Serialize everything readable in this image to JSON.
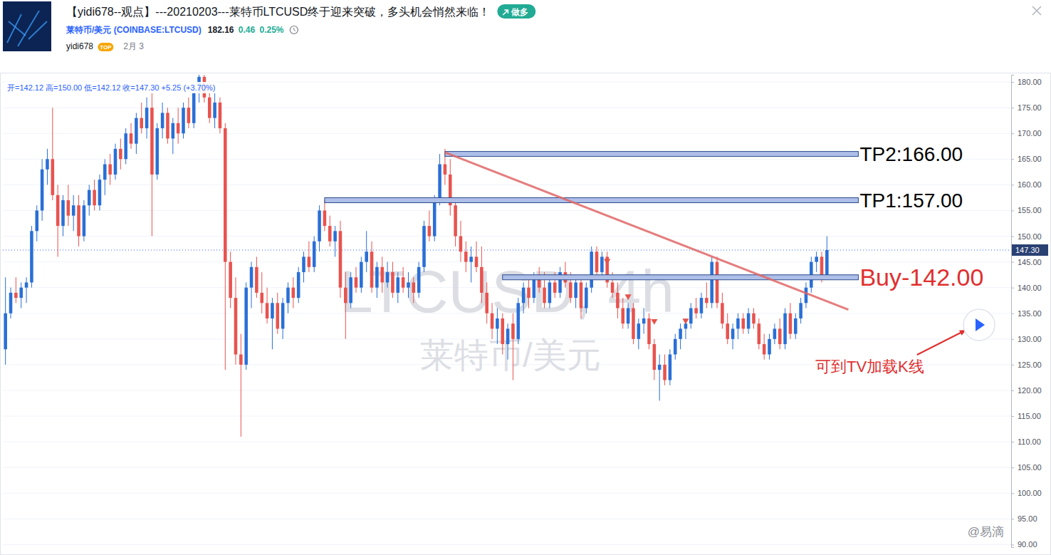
{
  "header": {
    "title": "【yidi678--观点】---20210203---莱特币LTCUSD终于迎来突破，多头机会悄然来临！",
    "badge": "做多",
    "symbol": "莱特币/美元 (COINBASE:LTCUSD)",
    "price": "182.16",
    "change": "0.46",
    "change_pct": "0.25%",
    "author": "yidi678",
    "author_badge": "TOP",
    "date": "2月 3"
  },
  "chart_data": {
    "type": "candlestick",
    "ohlc_legend": "开=142.12 高=150.00 低=142.12 收=147.30 +5.25 (+3.70%)",
    "watermark": "LTCUSD, 4h",
    "watermark_subtitle": "莱特币/美元",
    "categories": [
      null,
      null,
      null,
      null,
      null,
      null,
      null,
      null,
      null,
      null,
      null,
      null,
      null,
      null,
      null,
      null,
      null,
      null,
      null,
      null,
      null,
      null,
      null,
      null,
      null,
      null,
      null,
      null,
      null,
      null,
      null,
      null,
      null,
      null,
      null,
      null,
      null,
      null,
      null,
      null,
      null,
      null,
      null,
      null,
      null,
      null,
      null,
      null,
      null,
      null,
      null,
      null,
      null,
      null,
      null,
      null,
      null,
      null,
      null,
      null,
      null,
      null,
      null,
      null,
      null,
      null,
      null,
      null,
      null,
      null,
      null,
      null,
      null,
      null,
      null,
      null,
      null,
      null,
      null,
      null,
      null,
      null,
      null,
      null,
      null,
      null,
      null,
      null,
      null,
      null,
      null,
      null,
      null,
      null,
      null,
      null,
      null,
      null,
      null,
      null,
      null,
      null,
      null,
      null,
      null,
      null,
      null,
      null,
      null,
      null,
      null,
      null,
      null,
      null,
      null,
      null,
      null,
      null,
      null,
      null,
      null,
      null,
      null,
      null,
      null,
      null,
      null,
      null,
      null,
      null,
      null,
      null,
      null,
      null,
      null,
      null,
      null,
      null,
      null,
      null,
      null,
      null,
      null,
      null,
      null,
      null,
      null,
      null,
      null,
      null,
      null,
      null,
      null,
      null,
      null,
      null,
      null,
      null
    ],
    "series": [
      {
        "open": [
          128,
          135,
          139,
          138,
          140,
          141,
          151,
          155,
          163,
          165,
          158,
          152,
          157,
          154,
          156,
          150,
          156,
          159,
          156,
          161,
          164,
          162,
          167,
          165,
          170,
          168,
          173,
          171,
          175,
          162,
          171,
          174,
          169,
          172,
          170,
          175,
          172,
          178,
          181,
          177,
          173,
          176,
          171,
          145,
          138,
          127,
          125,
          140,
          144,
          139,
          137,
          134,
          137,
          132,
          137,
          140,
          138,
          143,
          146,
          144,
          149,
          155,
          152,
          149,
          151,
          140,
          137,
          142,
          140,
          145,
          147,
          140,
          144,
          141,
          143,
          139,
          142,
          140,
          141,
          139,
          144,
          152,
          150,
          157,
          164,
          162,
          156,
          150,
          147,
          145,
          146,
          144,
          139,
          135,
          132,
          134,
          129,
          133,
          130,
          137,
          140,
          138,
          142,
          140,
          137,
          141,
          139,
          143,
          141,
          138,
          141,
          136,
          140,
          147,
          143,
          146,
          141,
          139,
          136,
          133,
          136,
          130,
          133,
          134,
          129,
          124,
          125,
          122,
          127,
          130,
          132,
          133,
          136,
          135,
          138,
          137,
          145,
          137,
          133,
          130,
          132,
          134,
          132,
          135,
          133,
          129,
          127,
          130,
          132,
          129,
          135,
          131,
          134,
          137,
          140,
          145,
          146,
          142.12
        ],
        "high": [
          142,
          140,
          142,
          141,
          142,
          152,
          156,
          165,
          167,
          175,
          160,
          158,
          160,
          158,
          158,
          157,
          160,
          161,
          162,
          165,
          166,
          168,
          169,
          171,
          172,
          174,
          176,
          177,
          178,
          172,
          176,
          175,
          173,
          175,
          176,
          177,
          179,
          183,
          184,
          180,
          178,
          177,
          172,
          147,
          142,
          131,
          141,
          145,
          146,
          143,
          140,
          138,
          139,
          138,
          141,
          142,
          144,
          147,
          149,
          150,
          156,
          157,
          154,
          152,
          153,
          143,
          143,
          144,
          146,
          151,
          149,
          145,
          146,
          145,
          145,
          143,
          144,
          143,
          142,
          145,
          153,
          155,
          158,
          166,
          167,
          165,
          157,
          153,
          149,
          148,
          149,
          148,
          141,
          137,
          136,
          135,
          133,
          135,
          138,
          141,
          142,
          143,
          144,
          143,
          142,
          143,
          144,
          145,
          143,
          142,
          142,
          141,
          148,
          148,
          147,
          147,
          143,
          141,
          138,
          137,
          137,
          134,
          136,
          135,
          130,
          127,
          127,
          128,
          131,
          133,
          134,
          137,
          138,
          139,
          141,
          146,
          146,
          139,
          135,
          133,
          135,
          135,
          136,
          136,
          134,
          131,
          131,
          133,
          134,
          136,
          137,
          135,
          138,
          141,
          146,
          147,
          147,
          150
        ],
        "low": [
          125,
          134,
          137,
          136,
          137,
          140,
          149,
          153,
          160,
          157,
          146,
          150,
          152,
          151,
          148,
          149,
          154,
          155,
          155,
          158,
          160,
          161,
          163,
          164,
          167,
          166,
          170,
          169,
          150,
          161,
          169,
          168,
          166,
          168,
          169,
          171,
          171,
          176,
          176,
          172,
          171,
          170,
          124,
          136,
          125,
          111,
          124,
          136,
          138,
          135,
          133,
          128,
          131,
          130,
          135,
          136,
          137,
          141,
          143,
          143,
          147,
          151,
          148,
          146,
          138,
          130,
          136,
          139,
          139,
          143,
          139,
          138,
          139,
          140,
          138,
          137,
          139,
          138,
          137,
          138,
          143,
          149,
          149,
          156,
          160,
          154,
          148,
          145,
          143,
          141,
          143,
          137,
          133,
          130,
          129,
          127,
          126,
          122,
          129,
          135,
          136,
          137,
          139,
          136,
          136,
          138,
          138,
          140,
          137,
          136,
          134,
          135,
          139,
          142,
          142,
          140,
          138,
          134,
          132,
          132,
          129,
          128,
          131,
          128,
          122,
          118,
          121,
          121,
          126,
          128,
          130,
          132,
          134,
          134,
          136,
          136,
          136,
          132,
          129,
          128,
          130,
          131,
          131,
          132,
          128,
          126,
          126,
          129,
          128,
          128,
          130,
          130,
          133,
          136,
          139,
          143,
          141,
          142.12
        ],
        "close": [
          135,
          139,
          138,
          140,
          141,
          151,
          155,
          163,
          165,
          158,
          152,
          157,
          154,
          156,
          150,
          156,
          159,
          156,
          161,
          164,
          162,
          167,
          165,
          170,
          168,
          173,
          171,
          175,
          162,
          171,
          174,
          169,
          172,
          170,
          175,
          172,
          178,
          181,
          177,
          173,
          176,
          171,
          145,
          138,
          127,
          125,
          140,
          144,
          139,
          137,
          134,
          137,
          132,
          137,
          140,
          138,
          143,
          146,
          144,
          149,
          155,
          152,
          149,
          151,
          140,
          137,
          142,
          140,
          145,
          147,
          140,
          144,
          141,
          143,
          139,
          142,
          140,
          141,
          139,
          144,
          152,
          150,
          157,
          164,
          162,
          156,
          150,
          147,
          145,
          146,
          144,
          139,
          135,
          132,
          134,
          129,
          132,
          130,
          137,
          140,
          138,
          142,
          140,
          137,
          141,
          139,
          143,
          141,
          138,
          141,
          136,
          140,
          147,
          143,
          146,
          141,
          139,
          136,
          133,
          136,
          130,
          133,
          134,
          129,
          124,
          125,
          122,
          127,
          130,
          132,
          133,
          136,
          135,
          138,
          137,
          145,
          137,
          133,
          130,
          132,
          134,
          132,
          135,
          133,
          129,
          127,
          130,
          132,
          129,
          135,
          131,
          134,
          137,
          140,
          145,
          146,
          142,
          147.3
        ]
      }
    ],
    "ylim": [
      89.5,
      181.4
    ],
    "yticks": [
      {
        "value": 90,
        "label": "90.00"
      },
      {
        "value": 95,
        "label": "95.00"
      },
      {
        "value": 100,
        "label": "100.00"
      },
      {
        "value": 105,
        "label": "105.00"
      },
      {
        "value": 110,
        "label": "110.00"
      },
      {
        "value": 115,
        "label": "115.00"
      },
      {
        "value": 120,
        "label": "120.00"
      },
      {
        "value": 125,
        "label": "125.00"
      },
      {
        "value": 130,
        "label": "130.00"
      },
      {
        "value": 135,
        "label": "135.00"
      },
      {
        "value": 140,
        "label": "140.00"
      },
      {
        "value": 145,
        "label": "145.00"
      },
      {
        "value": 150,
        "label": "150.00"
      },
      {
        "value": 155,
        "label": "155.00"
      },
      {
        "value": 160,
        "label": "160.00"
      },
      {
        "value": 165,
        "label": "165.00"
      },
      {
        "value": 170,
        "label": "170.00"
      },
      {
        "value": 175,
        "label": "175.00"
      },
      {
        "value": 180,
        "label": "180.00"
      }
    ],
    "grid": true,
    "tick_labels": "y",
    "last_price": {
      "value": 147.3,
      "label": "147.30"
    },
    "annotations": [
      {
        "text": "TP2:166.00",
        "value": 166,
        "x_start": 84,
        "x_end": 163,
        "color": "#000000"
      },
      {
        "text": "TP1:157.00",
        "value": 157,
        "x_start": 61,
        "x_end": 163,
        "color": "#000000"
      },
      {
        "text": "Buy-142.00",
        "value": 142,
        "x_start": 95,
        "x_end": 163,
        "color": "#e0302f"
      }
    ],
    "trendline": {
      "x": [
        84,
        161.1
      ],
      "y": [
        166.3,
        135.7
      ]
    },
    "signals": {
      "x": [
        115,
        119,
        124,
        130
      ],
      "values": [
        145.2,
        138.3,
        133.5,
        133.6
      ]
    },
    "note": "可到TV加载K线",
    "source": "@易滴"
  }
}
